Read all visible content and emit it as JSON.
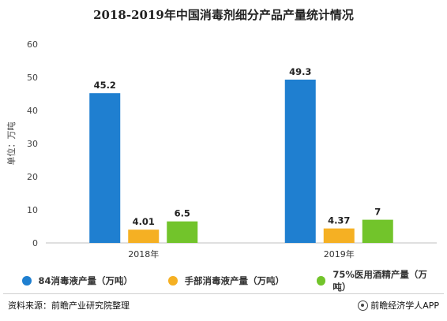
{
  "chart_data": {
    "type": "bar",
    "title": "2018-2019年中国消毒剂细分产品产量统计情况",
    "ylabel": "单位：万吨",
    "xlabel": "",
    "categories": [
      "2018年",
      "2019年"
    ],
    "ylim": [
      0,
      60
    ],
    "yticks": [
      0,
      10,
      20,
      30,
      40,
      50,
      60
    ],
    "grid": false,
    "legend_position": "bottom",
    "series": [
      {
        "name": "84消毒液产量（万吨）",
        "color": "#1f7fd0",
        "values": [
          45.2,
          49.3
        ],
        "labels": [
          "45.2",
          "49.3"
        ]
      },
      {
        "name": "手部消毒液产量（万吨）",
        "color": "#f5b023",
        "values": [
          4.01,
          4.37
        ],
        "labels": [
          "4.01",
          "4.37"
        ]
      },
      {
        "name": "75%医用酒精产量（万吨）",
        "color": "#72c42b",
        "values": [
          6.5,
          7
        ],
        "labels": [
          "6.5",
          "7"
        ]
      }
    ]
  },
  "footer": {
    "source": "资料来源：前瞻产业研究院整理",
    "brand": "前瞻经济学人APP"
  }
}
